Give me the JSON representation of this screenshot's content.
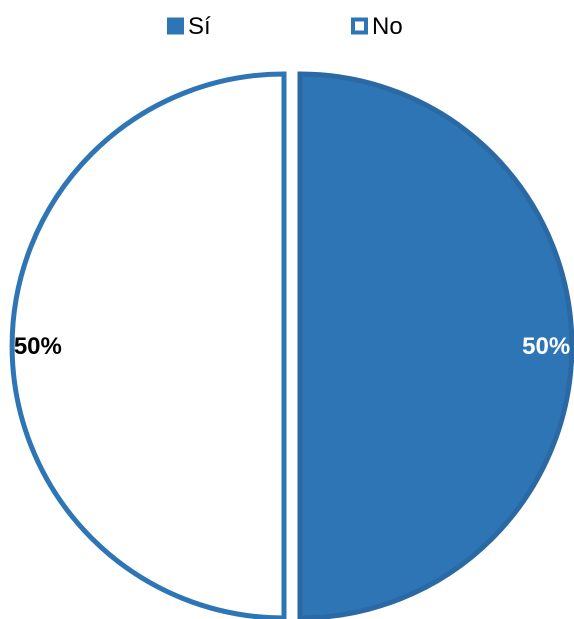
{
  "chart_data": {
    "type": "pie",
    "title": "",
    "categories": [
      "Sí",
      "No"
    ],
    "values": [
      50,
      50
    ],
    "data_labels": [
      "50%",
      "50%"
    ],
    "slice_style": [
      "filled",
      "outline"
    ],
    "legend_position": "top",
    "start_angle_deg": 0,
    "direction": "clockwise",
    "exploded": true
  },
  "colors": {
    "accent": "#2E75B6",
    "accent_dark": "#2A69A3",
    "background": "#FFFFFF",
    "label_on_fill": "#FFFFFF",
    "label_on_empty": "#000000"
  }
}
